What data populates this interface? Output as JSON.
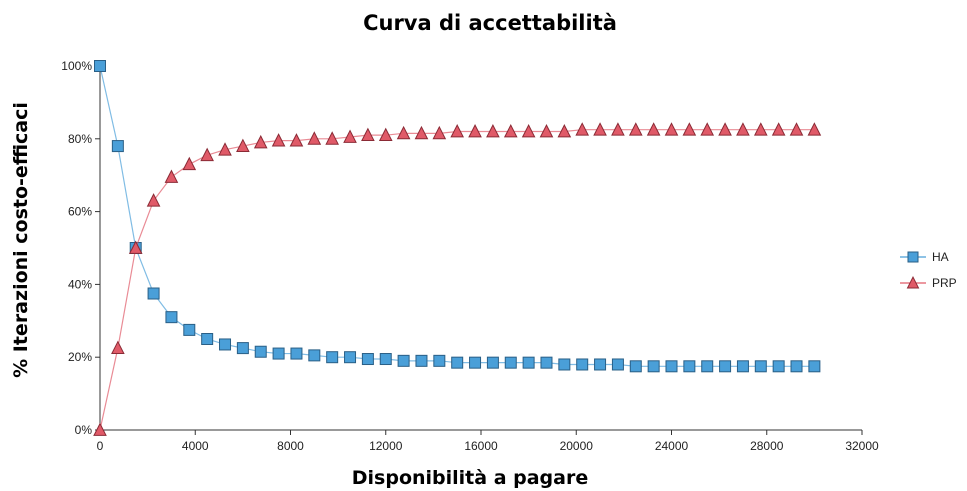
{
  "chart_data": {
    "type": "line",
    "title": "Curva di accettabilità",
    "xlabel": "Disponibilità a pagare",
    "ylabel": "% Iterazioni costo-efficaci",
    "xlim": [
      0,
      32000
    ],
    "ylim": [
      0,
      100
    ],
    "xticks": [
      "0",
      "4000",
      "8000",
      "12000",
      "16000",
      "20000",
      "24000",
      "28000",
      "32000"
    ],
    "yticks": [
      "0%",
      "20%",
      "40%",
      "60%",
      "80%",
      "100%"
    ],
    "grid": false,
    "legend": "right",
    "x": [
      0,
      750,
      1500,
      2250,
      3000,
      3750,
      4500,
      5250,
      6000,
      6750,
      7500,
      8250,
      9000,
      9750,
      10500,
      11250,
      12000,
      12750,
      13500,
      14250,
      15000,
      15750,
      16500,
      17250,
      18000,
      18750,
      19500,
      20250,
      21000,
      21750,
      22500,
      23250,
      24000,
      24750,
      25500,
      26250,
      27000,
      27750,
      28500,
      29250,
      30000
    ],
    "series": [
      {
        "name": "HA",
        "color": "#4a9fd8",
        "marker": "square",
        "values": [
          100,
          78,
          50,
          37.5,
          31,
          27.5,
          25,
          23.5,
          22.5,
          21.5,
          21,
          21,
          20.5,
          20,
          20,
          19.5,
          19.5,
          19,
          19,
          19,
          18.5,
          18.5,
          18.5,
          18.5,
          18.5,
          18.5,
          18,
          18,
          18,
          18,
          17.5,
          17.5,
          17.5,
          17.5,
          17.5,
          17.5,
          17.5,
          17.5,
          17.5,
          17.5,
          17.5
        ]
      },
      {
        "name": "PRP",
        "color": "#e05a68",
        "marker": "triangle",
        "values": [
          0,
          22.5,
          50,
          63,
          69.5,
          73,
          75.5,
          77,
          78,
          79,
          79.5,
          79.5,
          80,
          80,
          80.5,
          81,
          81,
          81.5,
          81.5,
          81.5,
          82,
          82,
          82,
          82,
          82,
          82,
          82,
          82.5,
          82.5,
          82.5,
          82.5,
          82.5,
          82.5,
          82.5,
          82.5,
          82.5,
          82.5,
          82.5,
          82.5,
          82.5,
          82.5
        ]
      }
    ]
  }
}
